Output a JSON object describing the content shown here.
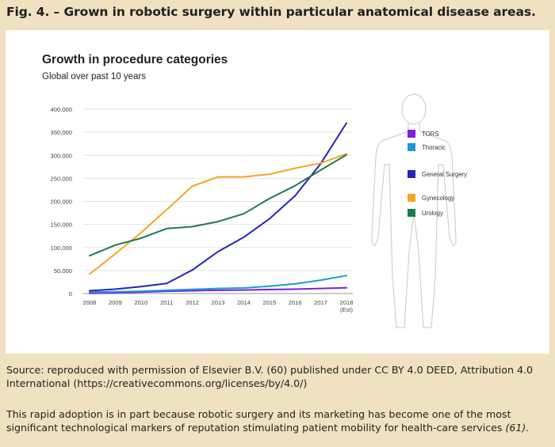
{
  "figure": {
    "caption": "Fig. 4. – Grown in robotic surgery within particular anatomical disease areas.",
    "source_text": "Source: reproduced with permission of Elsevier B.V. (60) published under CC BY 4.0 DEED, Attribution 4.0 International (https://creativecommons.org/licenses/by/4.0/)",
    "paragraph_text": "This rapid adoption is in part because robotic surgery and its marketing has become one of the most significant technological markers of reputation stimulating patient mobility for health-care services",
    "paragraph_ref": "(61)."
  },
  "chart_data": {
    "type": "line",
    "title": "Growth in procedure categories",
    "subtitle": "Global over past 10 years",
    "xlabel": "",
    "ylabel": "",
    "categories": [
      "2008",
      "2009",
      "2010",
      "2011",
      "2012",
      "2013",
      "2014",
      "2015",
      "2016",
      "2017",
      "2018 (Est)"
    ],
    "yticks": [
      "0",
      "50,000",
      "100,000",
      "150,000",
      "200,000",
      "250,000",
      "300,000",
      "350,000",
      "400,000"
    ],
    "ylim": [
      0,
      400000
    ],
    "grid": true,
    "legend_position": "right",
    "series": [
      {
        "name": "TORS",
        "color": "#7b1fe0",
        "values": [
          500,
          1500,
          3000,
          5000,
          6000,
          7000,
          7500,
          8500,
          9500,
          11000,
          12500
        ]
      },
      {
        "name": "Thoracic",
        "color": "#1b9bd6",
        "values": [
          3000,
          4000,
          5000,
          7000,
          9000,
          11000,
          12000,
          16000,
          21000,
          29000,
          39000
        ]
      },
      {
        "name": "General Surgery",
        "color": "#2424b8",
        "values": [
          6000,
          9500,
          15000,
          22000,
          51000,
          91000,
          122000,
          162000,
          212000,
          282000,
          370000
        ]
      },
      {
        "name": "Gynecology",
        "color": "#f5a623",
        "values": [
          42000,
          86000,
          132000,
          182000,
          233000,
          253000,
          253000,
          259000,
          272000,
          283000,
          303000
        ]
      },
      {
        "name": "Urology",
        "color": "#1e7a4e",
        "values": [
          82000,
          105000,
          120000,
          141000,
          145000,
          156000,
          173000,
          206000,
          234000,
          268000,
          301000
        ]
      }
    ]
  }
}
